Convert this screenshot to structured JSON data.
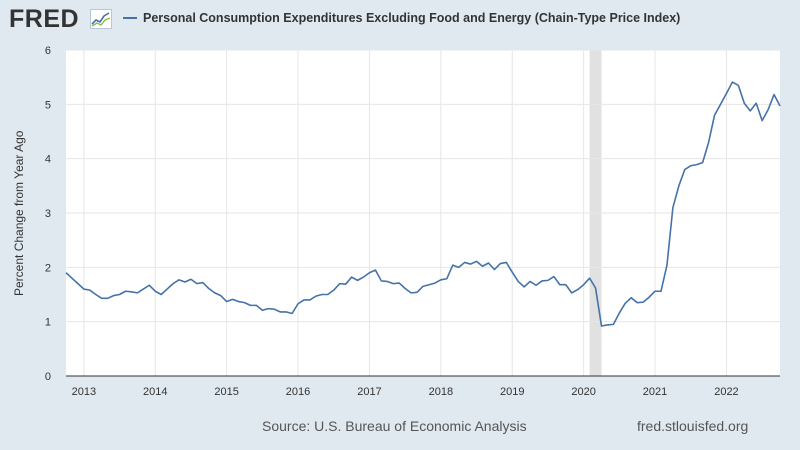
{
  "header": {
    "logo_text": "FRED",
    "logo_icon": "line-chart-icon",
    "legend_label": "Personal Consumption Expenditures Excluding Food and Energy (Chain-Type Price Index)",
    "series_color": "#4572a7"
  },
  "footer": {
    "source": "Source: U.S. Bureau of Economic Analysis",
    "url": "fred.stlouisfed.org"
  },
  "chart_data": {
    "type": "line",
    "title": "",
    "xlabel": "",
    "ylabel": "Percent Change from Year Ago",
    "xlim": [
      "2012-10-01",
      "2022-10-01"
    ],
    "ylim": [
      0,
      6
    ],
    "y_ticks": [
      0,
      1,
      2,
      3,
      4,
      5,
      6
    ],
    "x_ticks": [
      "2013",
      "2014",
      "2015",
      "2016",
      "2017",
      "2018",
      "2019",
      "2020",
      "2021",
      "2022"
    ],
    "grid": true,
    "recession_shading": [
      {
        "start": "2020-02-01",
        "end": "2020-04-01",
        "color": "#e1e1e1"
      }
    ],
    "series": [
      {
        "name": "Personal Consumption Expenditures Excluding Food and Energy (Chain-Type Price Index)",
        "color": "#4572a7",
        "x": [
          "2012-10",
          "2012-11",
          "2012-12",
          "2013-01",
          "2013-02",
          "2013-03",
          "2013-04",
          "2013-05",
          "2013-06",
          "2013-07",
          "2013-08",
          "2013-09",
          "2013-10",
          "2013-11",
          "2013-12",
          "2014-01",
          "2014-02",
          "2014-03",
          "2014-04",
          "2014-05",
          "2014-06",
          "2014-07",
          "2014-08",
          "2014-09",
          "2014-10",
          "2014-11",
          "2014-12",
          "2015-01",
          "2015-02",
          "2015-03",
          "2015-04",
          "2015-05",
          "2015-06",
          "2015-07",
          "2015-08",
          "2015-09",
          "2015-10",
          "2015-11",
          "2015-12",
          "2016-01",
          "2016-02",
          "2016-03",
          "2016-04",
          "2016-05",
          "2016-06",
          "2016-07",
          "2016-08",
          "2016-09",
          "2016-10",
          "2016-11",
          "2016-12",
          "2017-01",
          "2017-02",
          "2017-03",
          "2017-04",
          "2017-05",
          "2017-06",
          "2017-07",
          "2017-08",
          "2017-09",
          "2017-10",
          "2017-11",
          "2017-12",
          "2018-01",
          "2018-02",
          "2018-03",
          "2018-04",
          "2018-05",
          "2018-06",
          "2018-07",
          "2018-08",
          "2018-09",
          "2018-10",
          "2018-11",
          "2018-12",
          "2019-01",
          "2019-02",
          "2019-03",
          "2019-04",
          "2019-05",
          "2019-06",
          "2019-07",
          "2019-08",
          "2019-09",
          "2019-10",
          "2019-11",
          "2019-12",
          "2020-01",
          "2020-02",
          "2020-03",
          "2020-04",
          "2020-05",
          "2020-06",
          "2020-07",
          "2020-08",
          "2020-09",
          "2020-10",
          "2020-11",
          "2020-12",
          "2021-01",
          "2021-02",
          "2021-03",
          "2021-04",
          "2021-05",
          "2021-06",
          "2021-07",
          "2021-08",
          "2021-09",
          "2021-10",
          "2021-11",
          "2021-12",
          "2022-01",
          "2022-02",
          "2022-03",
          "2022-04",
          "2022-05",
          "2022-06",
          "2022-07",
          "2022-08",
          "2022-09",
          "2022-10"
        ],
        "values": [
          1.9,
          1.8,
          1.7,
          1.6,
          1.58,
          1.5,
          1.43,
          1.43,
          1.48,
          1.5,
          1.56,
          1.55,
          1.53,
          1.6,
          1.67,
          1.56,
          1.5,
          1.6,
          1.7,
          1.77,
          1.73,
          1.78,
          1.7,
          1.72,
          1.61,
          1.53,
          1.48,
          1.37,
          1.41,
          1.37,
          1.35,
          1.3,
          1.3,
          1.21,
          1.24,
          1.23,
          1.18,
          1.18,
          1.15,
          1.33,
          1.4,
          1.4,
          1.47,
          1.5,
          1.5,
          1.58,
          1.7,
          1.69,
          1.82,
          1.76,
          1.82,
          1.9,
          1.95,
          1.75,
          1.74,
          1.7,
          1.71,
          1.61,
          1.53,
          1.54,
          1.65,
          1.68,
          1.71,
          1.77,
          1.79,
          2.04,
          2.0,
          2.09,
          2.06,
          2.11,
          2.02,
          2.08,
          1.96,
          2.07,
          2.09,
          1.91,
          1.74,
          1.64,
          1.74,
          1.67,
          1.75,
          1.76,
          1.83,
          1.68,
          1.68,
          1.53,
          1.59,
          1.68,
          1.8,
          1.62,
          0.92,
          0.94,
          0.95,
          1.16,
          1.34,
          1.44,
          1.35,
          1.36,
          1.45,
          1.56,
          1.56,
          2.04,
          3.1,
          3.5,
          3.8,
          3.87,
          3.89,
          3.93,
          4.3,
          4.8,
          5.0,
          5.2,
          5.41,
          5.35,
          5.02,
          4.88,
          5.02,
          4.7,
          4.9,
          5.18,
          4.97
        ]
      }
    ]
  }
}
